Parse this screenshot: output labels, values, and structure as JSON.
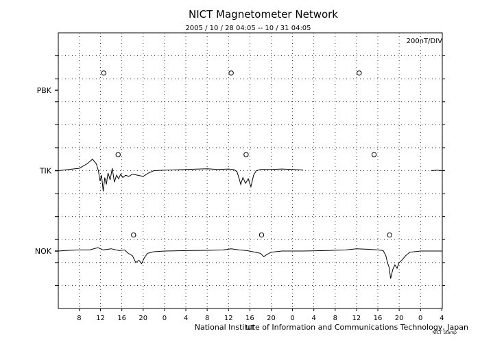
{
  "chart_data": {
    "type": "line",
    "title": "NICT Magnetometer Network",
    "subtitle": "2005 / 10 / 28   04:05 -- 10 / 31   04:05",
    "scale_label": "200nT/DIV",
    "xlabel": "UT",
    "credit": "National Institute of Information and Communications Technology, Japan",
    "footnote": "NICT Stamp",
    "x_tick_labels": [
      "8",
      "12",
      "16",
      "20",
      "0",
      "4",
      "8",
      "12",
      "16",
      "20",
      "0",
      "4",
      "8",
      "12",
      "16",
      "20",
      "0",
      "4"
    ],
    "hours_range": [
      4.0833,
      76.0833
    ],
    "first_tick_hour": 8,
    "tick_step_hours": 4,
    "y_divisions": 12,
    "grid": true,
    "series": [
      {
        "name": "PBK",
        "baseline_div": 9.5,
        "has_data": false,
        "local_midnight_markers_h": [
          12.6,
          36.5,
          60.5
        ],
        "marker_offset_div": 0.75,
        "points": []
      },
      {
        "name": "TIK",
        "baseline_div": 6.0,
        "has_data": true,
        "local_midnight_markers_h": [
          15.3,
          39.3,
          63.3
        ],
        "marker_offset_div": 0.7,
        "points": [
          [
            4.08,
            0.0
          ],
          [
            6,
            0.05
          ],
          [
            8,
            0.1
          ],
          [
            9.5,
            0.3
          ],
          [
            10.5,
            0.5
          ],
          [
            11.2,
            0.3
          ],
          [
            11.6,
            0.0
          ],
          [
            11.9,
            -0.45
          ],
          [
            12.2,
            -0.2
          ],
          [
            12.5,
            -0.9
          ],
          [
            12.8,
            -0.3
          ],
          [
            13.1,
            -0.6
          ],
          [
            13.4,
            -0.1
          ],
          [
            13.8,
            -0.4
          ],
          [
            14.2,
            0.1
          ],
          [
            14.6,
            -0.5
          ],
          [
            15.0,
            -0.2
          ],
          [
            15.4,
            -0.35
          ],
          [
            15.8,
            -0.15
          ],
          [
            16.2,
            -0.3
          ],
          [
            16.7,
            -0.2
          ],
          [
            17.3,
            -0.25
          ],
          [
            18,
            -0.15
          ],
          [
            19,
            -0.2
          ],
          [
            20,
            -0.25
          ],
          [
            21,
            -0.1
          ],
          [
            22,
            0.0
          ],
          [
            24,
            0.02
          ],
          [
            28,
            0.05
          ],
          [
            32,
            0.08
          ],
          [
            34,
            0.05
          ],
          [
            36,
            0.07
          ],
          [
            37,
            0.05
          ],
          [
            37.6,
            -0.05
          ],
          [
            38,
            -0.35
          ],
          [
            38.3,
            -0.6
          ],
          [
            38.7,
            -0.3
          ],
          [
            39.2,
            -0.55
          ],
          [
            39.7,
            -0.35
          ],
          [
            40.2,
            -0.7
          ],
          [
            40.7,
            -0.2
          ],
          [
            41.2,
            0.0
          ],
          [
            42,
            0.05
          ],
          [
            44,
            0.05
          ],
          [
            46,
            0.07
          ],
          [
            48,
            0.05
          ],
          [
            50,
            0.03
          ]
        ],
        "gap_points": [
          [
            74.0,
            0.0
          ],
          [
            75.0,
            0.02
          ],
          [
            76.08,
            0.0
          ]
        ]
      },
      {
        "name": "NOK",
        "baseline_div": 2.5,
        "has_data": true,
        "local_midnight_markers_h": [
          18.2,
          42.2,
          66.2
        ],
        "marker_offset_div": 0.7,
        "points": [
          [
            4.08,
            0.0
          ],
          [
            6,
            0.03
          ],
          [
            8,
            0.05
          ],
          [
            10,
            0.05
          ],
          [
            11.5,
            0.15
          ],
          [
            12.5,
            0.05
          ],
          [
            14,
            0.1
          ],
          [
            15.5,
            0.02
          ],
          [
            16.5,
            0.05
          ],
          [
            17.2,
            -0.1
          ],
          [
            18,
            -0.2
          ],
          [
            18.6,
            -0.5
          ],
          [
            19.2,
            -0.4
          ],
          [
            19.7,
            -0.55
          ],
          [
            20.2,
            -0.3
          ],
          [
            20.8,
            -0.1
          ],
          [
            22,
            -0.03
          ],
          [
            24,
            0.0
          ],
          [
            28,
            0.02
          ],
          [
            32,
            0.03
          ],
          [
            35,
            0.05
          ],
          [
            36.5,
            0.1
          ],
          [
            38,
            0.05
          ],
          [
            39.5,
            0.02
          ],
          [
            41,
            -0.05
          ],
          [
            42,
            -0.1
          ],
          [
            42.6,
            -0.25
          ],
          [
            43.2,
            -0.15
          ],
          [
            44,
            -0.05
          ],
          [
            46,
            0.0
          ],
          [
            50,
            0.0
          ],
          [
            54,
            0.02
          ],
          [
            58,
            0.05
          ],
          [
            60,
            0.1
          ],
          [
            62,
            0.08
          ],
          [
            64,
            0.05
          ],
          [
            65,
            0.02
          ],
          [
            65.5,
            -0.2
          ],
          [
            65.8,
            -0.5
          ],
          [
            66.1,
            -0.7
          ],
          [
            66.4,
            -1.2
          ],
          [
            66.8,
            -0.8
          ],
          [
            67.2,
            -0.6
          ],
          [
            67.6,
            -0.75
          ],
          [
            68,
            -0.5
          ],
          [
            68.5,
            -0.4
          ],
          [
            69.2,
            -0.2
          ],
          [
            70,
            -0.05
          ],
          [
            72,
            0.0
          ],
          [
            74,
            0.0
          ],
          [
            76.08,
            0.0
          ]
        ]
      }
    ]
  }
}
